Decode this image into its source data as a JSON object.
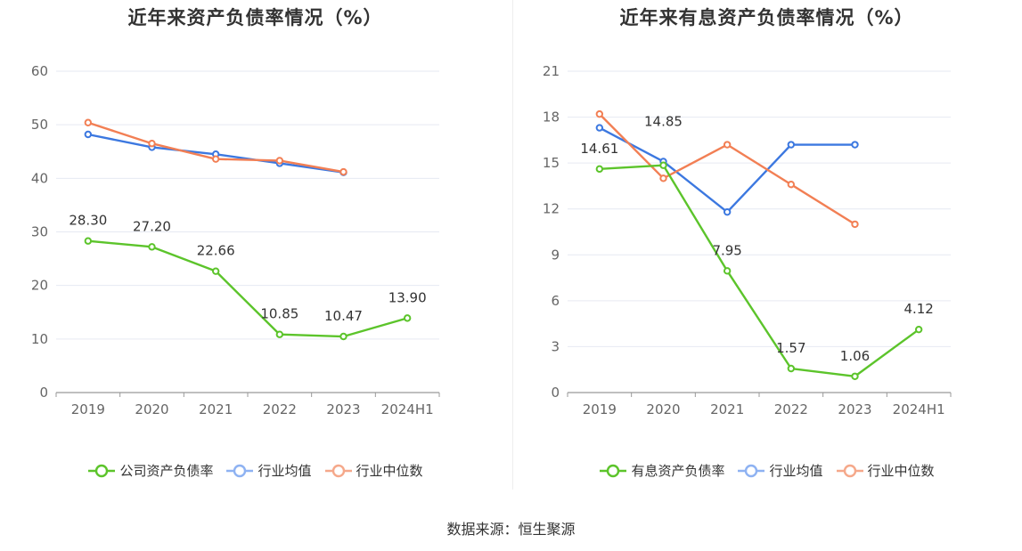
{
  "source_text": "数据来源：恒生聚源",
  "chart_data": [
    {
      "type": "line",
      "title": "近年来资产负债率情况（%）",
      "categories": [
        "2019",
        "2020",
        "2021",
        "2022",
        "2023",
        "2024H1"
      ],
      "ylim": [
        0,
        60
      ],
      "yticks": [
        0,
        10,
        20,
        30,
        40,
        50,
        60
      ],
      "grid": true,
      "legend_position": "bottom",
      "series": [
        {
          "name": "公司资产负债率",
          "color": "#5cc42b",
          "values": [
            28.3,
            27.2,
            22.66,
            10.85,
            10.47,
            13.9
          ],
          "labels": [
            "28.30",
            "27.20",
            "22.66",
            "10.85",
            "10.47",
            "13.90"
          ],
          "label_dy": [
            -18,
            -18,
            -18,
            -18,
            -18,
            -18
          ]
        },
        {
          "name": "行业均值",
          "color": "#3c78e0",
          "values": [
            48.2,
            45.8,
            44.5,
            42.8,
            41.1,
            null
          ]
        },
        {
          "name": "行业中位数",
          "color": "#f27f54",
          "values": [
            50.4,
            46.5,
            43.6,
            43.3,
            41.2,
            null
          ]
        }
      ],
      "legend_colors": [
        "#5cc42b",
        "#8eb2f2",
        "#f5a88a"
      ]
    },
    {
      "type": "line",
      "title": "近年来有息资产负债率情况（%）",
      "categories": [
        "2019",
        "2020",
        "2021",
        "2022",
        "2023",
        "2024H1"
      ],
      "ylim": [
        0,
        21
      ],
      "yticks": [
        0,
        3,
        6,
        9,
        12,
        15,
        18,
        21
      ],
      "grid": true,
      "legend_position": "bottom",
      "series": [
        {
          "name": "有息资产负债率",
          "color": "#5cc42b",
          "values": [
            14.61,
            14.85,
            7.95,
            1.57,
            1.06,
            4.12
          ],
          "labels": [
            "14.61",
            "14.85",
            "7.95",
            "1.57",
            "1.06",
            "4.12"
          ],
          "label_dy": [
            -18,
            -44,
            -18,
            -18,
            -18,
            -18
          ]
        },
        {
          "name": "行业均值",
          "color": "#3c78e0",
          "values": [
            17.3,
            15.1,
            11.8,
            16.2,
            16.2,
            null
          ]
        },
        {
          "name": "行业中位数",
          "color": "#f27f54",
          "values": [
            18.2,
            14.0,
            16.2,
            13.6,
            11.0,
            null
          ]
        }
      ],
      "legend_colors": [
        "#5cc42b",
        "#8eb2f2",
        "#f5a88a"
      ]
    }
  ]
}
